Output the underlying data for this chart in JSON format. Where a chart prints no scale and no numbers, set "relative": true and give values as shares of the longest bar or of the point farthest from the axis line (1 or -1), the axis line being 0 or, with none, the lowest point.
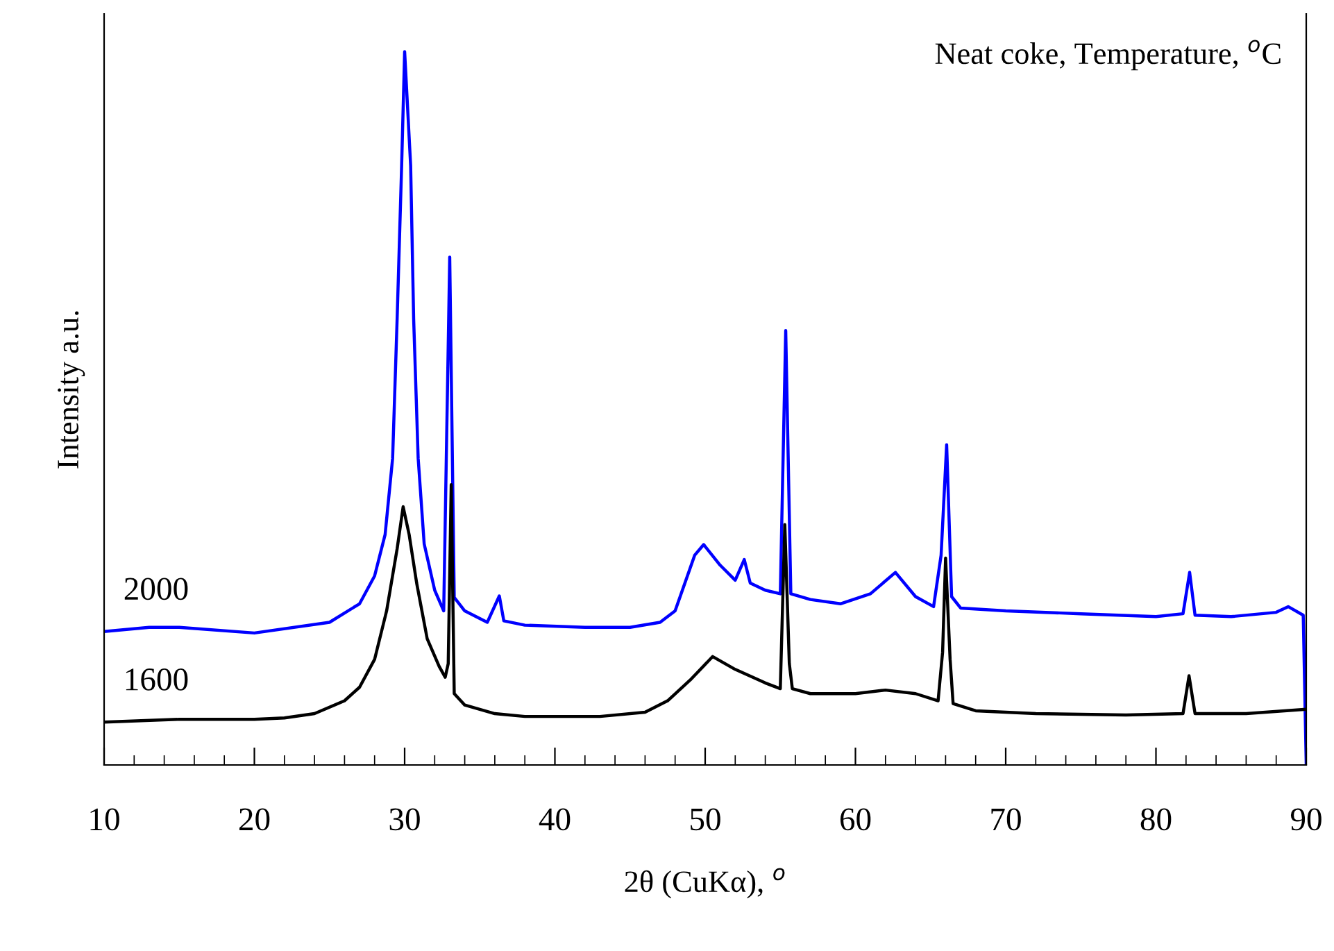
{
  "chart_data": {
    "type": "line",
    "title": "Neat coke, Temperature, $^{o}$C",
    "xlabel": "2θ (CuKα), $^{o}$",
    "ylabel": "Intensity a.u.",
    "relative": true,
    "xlim": [
      10,
      90
    ],
    "xticks": [
      10,
      20,
      30,
      40,
      50,
      60,
      70,
      80,
      90
    ],
    "legend": false,
    "grid": false,
    "marker": "none",
    "line_style": "solid",
    "series": [
      {
        "name": "2000",
        "color": "#0000ff",
        "x": [
          10,
          13,
          15,
          20,
          25,
          27,
          28,
          28.7,
          29.2,
          29.5,
          29.8,
          30.0,
          30.4,
          30.6,
          30.9,
          31.3,
          32,
          32.6,
          33.0,
          33.3,
          34,
          35.5,
          36.3,
          36.6,
          38,
          42,
          45,
          47,
          48,
          49.3,
          49.9,
          51,
          52,
          52.6,
          53,
          54,
          55,
          55.36,
          55.7,
          57,
          59,
          61,
          62.66,
          64,
          65.2,
          65.7,
          66.07,
          66.4,
          67,
          70,
          75,
          80,
          81.8,
          82.24,
          82.6,
          85,
          88,
          88.8,
          89.8,
          90
        ],
        "values": [
          0.187,
          0.193,
          0.193,
          0.185,
          0.2,
          0.226,
          0.265,
          0.323,
          0.43,
          0.625,
          0.84,
          1.0,
          0.84,
          0.625,
          0.43,
          0.31,
          0.245,
          0.216,
          0.712,
          0.235,
          0.216,
          0.2,
          0.237,
          0.202,
          0.196,
          0.193,
          0.193,
          0.2,
          0.216,
          0.294,
          0.309,
          0.28,
          0.259,
          0.288,
          0.255,
          0.245,
          0.24,
          0.609,
          0.24,
          0.232,
          0.226,
          0.24,
          0.27,
          0.236,
          0.222,
          0.294,
          0.449,
          0.236,
          0.22,
          0.216,
          0.212,
          0.208,
          0.212,
          0.27,
          0.21,
          0.208,
          0.214,
          0.222,
          0.21,
          0
        ]
      },
      {
        "name": "1600",
        "color": "#000000",
        "x": [
          10,
          15,
          20,
          22,
          24,
          26,
          27,
          28,
          28.8,
          29.5,
          29.9,
          30.3,
          30.8,
          31.5,
          32.3,
          32.7,
          32.9,
          33.1,
          33.3,
          34,
          36,
          38,
          43,
          46,
          47.5,
          49,
          50.5,
          52,
          54,
          55.0,
          55.3,
          55.6,
          55.8,
          57,
          60,
          62,
          64,
          65.5,
          65.8,
          66.0,
          66.3,
          66.5,
          68,
          72,
          78,
          81.8,
          82.2,
          82.6,
          86,
          90
        ],
        "values": [
          0.06,
          0.064,
          0.064,
          0.066,
          0.072,
          0.09,
          0.109,
          0.148,
          0.216,
          0.303,
          0.362,
          0.323,
          0.255,
          0.177,
          0.138,
          0.123,
          0.142,
          0.393,
          0.1,
          0.084,
          0.072,
          0.068,
          0.068,
          0.074,
          0.09,
          0.119,
          0.152,
          0.134,
          0.115,
          0.107,
          0.337,
          0.142,
          0.107,
          0.1,
          0.1,
          0.105,
          0.1,
          0.09,
          0.158,
          0.29,
          0.148,
          0.086,
          0.076,
          0.072,
          0.07,
          0.072,
          0.125,
          0.072,
          0.072,
          0.078
        ]
      }
    ]
  }
}
